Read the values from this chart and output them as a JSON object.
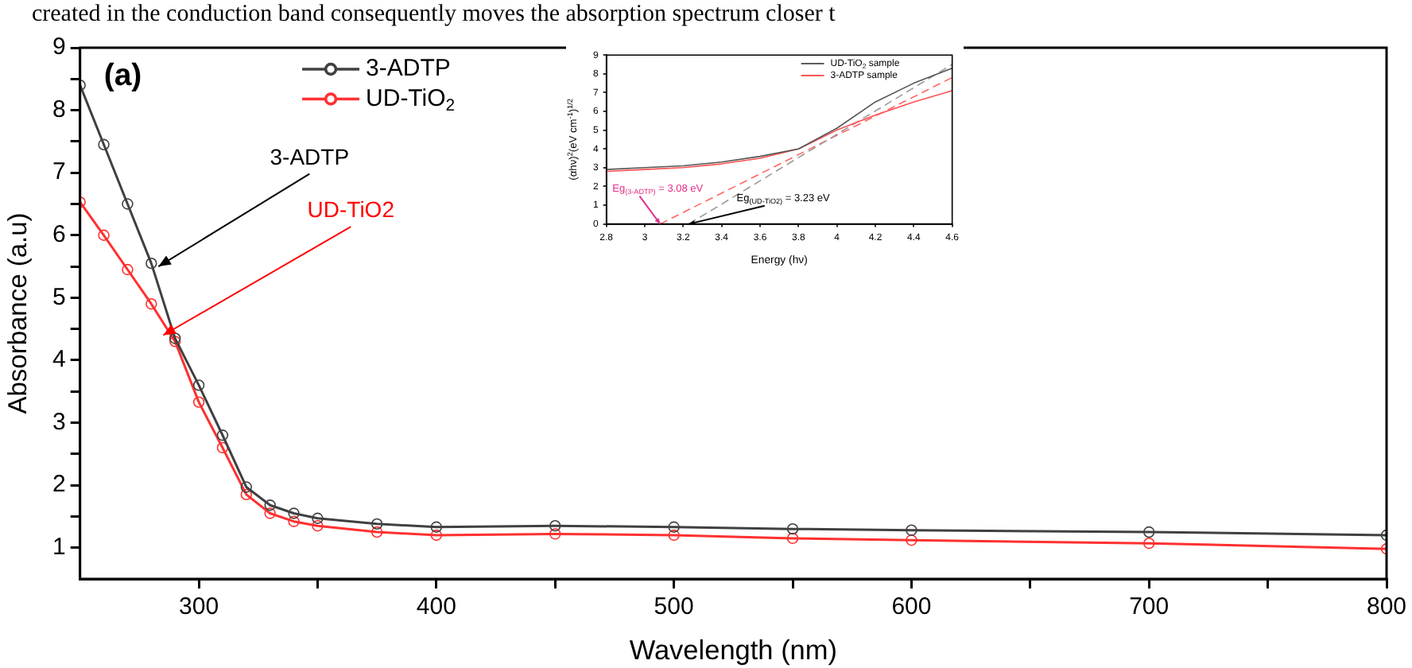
{
  "chart_data": [
    {
      "type": "line",
      "title": "(a)",
      "xlabel": "Wavelength (nm)",
      "ylabel": "Absorbance (a.u)",
      "x": [
        250,
        260,
        270,
        280,
        290,
        300,
        310,
        320,
        330,
        340,
        350,
        375,
        400,
        450,
        500,
        550,
        600,
        700,
        800
      ],
      "series": [
        {
          "name": "3-ADTP",
          "color": "#404040",
          "values": [
            8.4,
            7.45,
            6.5,
            5.55,
            4.35,
            3.6,
            2.8,
            1.97,
            1.68,
            1.55,
            1.47,
            1.38,
            1.33,
            1.35,
            1.33,
            1.3,
            1.28,
            1.25,
            1.2
          ]
        },
        {
          "name": "UD-TiO$_{2}$",
          "color": "#ff3030",
          "values": [
            6.53,
            6.0,
            5.45,
            4.9,
            4.3,
            3.33,
            2.6,
            1.85,
            1.55,
            1.42,
            1.35,
            1.25,
            1.2,
            1.22,
            1.2,
            1.15,
            1.12,
            1.07,
            0.98
          ]
        }
      ],
      "xlim": [
        250,
        800
      ],
      "xticks": [
        300,
        {
          "value": 350,
          "label": null
        },
        400,
        {
          "value": 450,
          "label": null
        },
        500,
        {
          "value": 550,
          "label": null
        },
        600,
        {
          "value": 650,
          "label": null
        },
        700,
        {
          "value": 750,
          "label": null
        },
        800
      ],
      "ylim": [
        0.5,
        9
      ],
      "yticks": [
        1,
        {
          "value": 1.5,
          "label": null
        },
        2,
        {
          "value": 2.5,
          "label": null
        },
        3,
        {
          "value": 3.5,
          "label": null
        },
        4,
        {
          "value": 4.5,
          "label": null
        },
        5,
        {
          "value": 5.5,
          "label": null
        },
        6,
        {
          "value": 6.5,
          "label": null
        },
        7,
        {
          "value": 7.5,
          "label": null
        },
        8,
        {
          "value": 8.5,
          "label": null
        },
        9
      ],
      "marker": "circle",
      "grid": false,
      "legend": "top left",
      "annotations": [
        "created in the conduction band consequently moves the absorption spectrum closer t",
        {
          "text": "3-ADTP",
          "x": 283,
          "y": 5.5
        },
        {
          "text": "UD-TiO2",
          "x": 285,
          "y": 4.4
        }
      ]
    },
    {
      "type": "line",
      "xlabel": "Energy (hν)",
      "ylabel": "(αhν)$^{2}$(eV cm$^{-1}$)$^{1/2}$",
      "x": [
        2.8,
        3.0,
        3.2,
        3.4,
        3.6,
        3.8,
        4.0,
        4.2,
        4.4,
        4.6
      ],
      "series": [
        {
          "name": "UD-TiO$_{2}$ sample",
          "color": "#555555",
          "values": [
            2.9,
            3.0,
            3.1,
            3.3,
            3.6,
            4.0,
            5.1,
            6.5,
            7.5,
            8.3
          ]
        },
        {
          "name": "3-ADTP sample",
          "color": "#ff5050",
          "values": [
            2.8,
            2.9,
            3.0,
            3.2,
            3.5,
            4.0,
            5.0,
            5.8,
            6.5,
            7.1
          ]
        },
        {
          "color": "#999999",
          "x": [
            3.23,
            4.6
          ],
          "values": [
            0,
            8.5
          ],
          "line_style": "dashed"
        },
        {
          "color": "#ff6666",
          "x": [
            3.08,
            4.6
          ],
          "values": [
            0,
            7.8
          ],
          "line_style": "dashed"
        }
      ],
      "xlim": [
        2.8,
        4.6
      ],
      "xticks": [
        2.8,
        3.0,
        3.2,
        3.4,
        3.6,
        3.8,
        4.0,
        4.2,
        4.4,
        4.6
      ],
      "ylim": [
        0,
        9
      ],
      "yticks": [
        0,
        1,
        2,
        3,
        4,
        5,
        6,
        7,
        8,
        9
      ],
      "marker": "none",
      "line_style": "solid",
      "grid": false,
      "legend": "top right",
      "annotations": [
        {
          "text": "Eg$_{(3-ADTP)}$ = 3.08 eV",
          "x": 3.08,
          "y": 0
        },
        {
          "text": "Eg$_{(UD-TiO2)}$ = 3.23 eV",
          "x": 3.23,
          "y": 0
        }
      ]
    }
  ]
}
